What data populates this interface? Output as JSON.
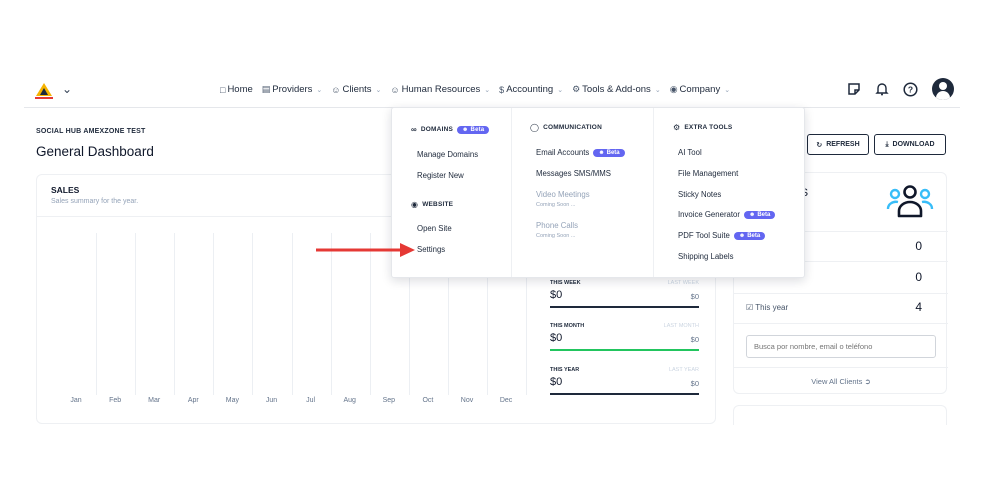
{
  "nav": {
    "items": [
      {
        "icon": "monitor-icon",
        "label": "Home",
        "has_caret": false
      },
      {
        "icon": "building-icon",
        "label": "Providers",
        "has_caret": true
      },
      {
        "icon": "users-icon",
        "label": "Clients",
        "has_caret": true
      },
      {
        "icon": "user-plus-icon",
        "label": "Human Resources",
        "has_caret": true
      },
      {
        "icon": "dollar-icon",
        "label": "Accounting",
        "has_caret": true
      },
      {
        "icon": "tools-icon",
        "label": "Tools & Add-ons",
        "has_caret": true
      },
      {
        "icon": "globe-icon",
        "label": "Company",
        "has_caret": true
      }
    ]
  },
  "header": {
    "org_name": "SOCIAL HUB AMEXZONE TEST",
    "title": "General Dashboard",
    "refresh_label": "REFRESH",
    "download_label": "DOWNLOAD"
  },
  "sales": {
    "title": "SALES",
    "subtitle": "Sales summary for the year.",
    "months": [
      "Jan",
      "Feb",
      "Mar",
      "Apr",
      "May",
      "Jun",
      "Jul",
      "Aug",
      "Sep",
      "Oct",
      "Nov",
      "Dec"
    ]
  },
  "periods": [
    {
      "label": "THIS WEEK",
      "last_label": "LAST WEEK",
      "value": "$0",
      "last_value": "$0",
      "color": "#1e293b"
    },
    {
      "label": "THIS MONTH",
      "last_label": "LAST MONTH",
      "value": "$0",
      "last_value": "$0",
      "color": "#22c55e"
    },
    {
      "label": "THIS YEAR",
      "last_label": "LAST YEAR",
      "value": "$0",
      "last_value": "$0",
      "color": "#1e293b"
    }
  ],
  "clients": {
    "title_fragment": "TS",
    "count_1": "0",
    "count_2": "0",
    "this_year_label": "This year",
    "this_year_count": "4",
    "search_placeholder": "Busca por nombre, email o teléfono",
    "view_all": "View All Clients"
  },
  "menu": {
    "domains": {
      "heading": "DOMAINS",
      "beta": "Beta",
      "items": [
        "Manage Domains",
        "Register New"
      ]
    },
    "website": {
      "heading": "WEBSITE",
      "items": [
        "Open Site",
        "Settings"
      ]
    },
    "communication": {
      "heading": "COMMUNICATION",
      "email": "Email Accounts",
      "email_beta": "Beta",
      "messages": "Messages SMS/MMS",
      "video": "Video Meetings",
      "video_note": "Coming Soon ...",
      "phone": "Phone Calls",
      "phone_note": "Coming Soon ..."
    },
    "extra_tools": {
      "heading": "EXTRA TOOLS",
      "ai": "AI Tool",
      "files": "File Management",
      "notes": "Sticky Notes",
      "invoice": "Invoice Generator",
      "invoice_beta": "Beta",
      "pdf": "PDF Tool Suite",
      "pdf_beta": "Beta",
      "shipping": "Shipping Labels"
    }
  },
  "colors": {
    "accent": "#6366f1",
    "arrow": "#e53935",
    "primary": "#1e293b",
    "success": "#22c55e"
  }
}
